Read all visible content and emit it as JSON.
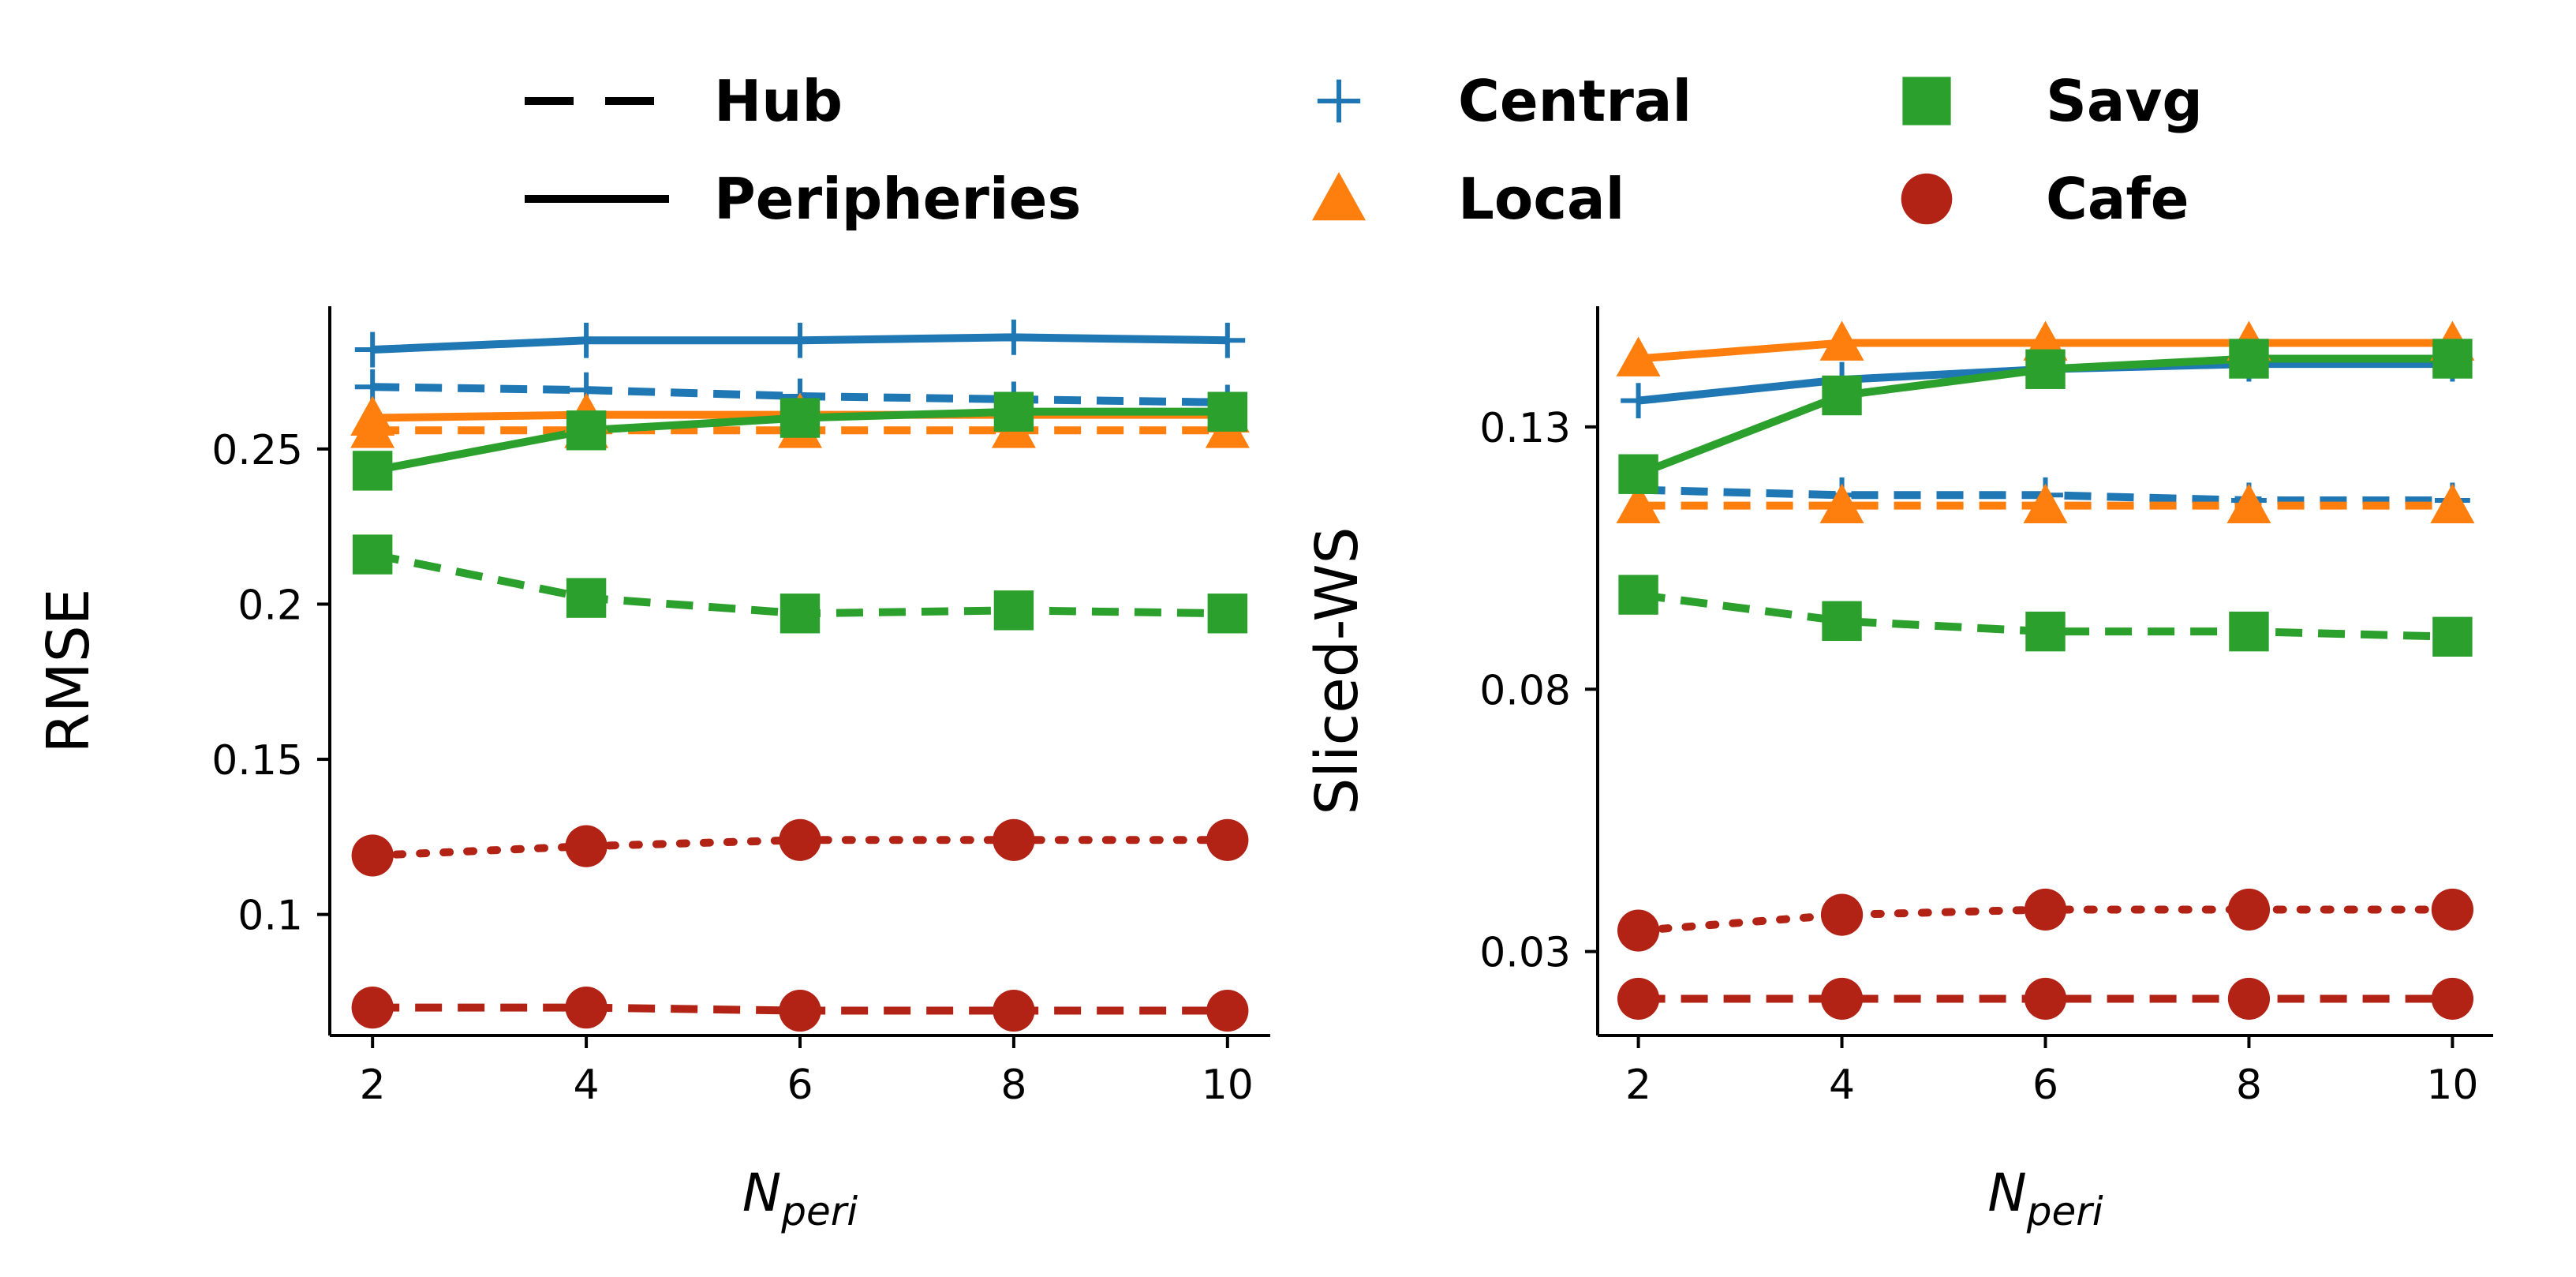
{
  "colors": {
    "Central": "#1f77b4",
    "Local": "#ff7f0e",
    "Savg": "#2ca02c",
    "Cafe": "#b22316",
    "axis": "#000000"
  },
  "legend": {
    "placement": "top-center",
    "styles": [
      {
        "name": "Hub",
        "line": "dashed"
      },
      {
        "name": "Peripheries",
        "line": "solid"
      }
    ],
    "methods": [
      {
        "name": "Central",
        "marker": "plus"
      },
      {
        "name": "Local",
        "marker": "triangle"
      },
      {
        "name": "Savg",
        "marker": "square"
      },
      {
        "name": "Cafe",
        "marker": "circle"
      }
    ]
  },
  "chart_data": [
    {
      "type": "line",
      "title": "",
      "xlabel_main": "N",
      "xlabel_sub": "peri",
      "ylabel": "RMSE",
      "x": [
        2,
        4,
        6,
        8,
        10
      ],
      "xlim": [
        1.6,
        10.4
      ],
      "ylim": [
        0.061,
        0.296
      ],
      "yticks": [
        0.1,
        0.15,
        0.2,
        0.25
      ],
      "ytick_labels": [
        "0.1",
        "0.15",
        "0.2",
        "0.25"
      ],
      "grid": false,
      "series": [
        {
          "method": "Central",
          "line": "dashed",
          "values": [
            0.27,
            0.269,
            0.267,
            0.266,
            0.265
          ]
        },
        {
          "method": "Central",
          "line": "solid",
          "values": [
            0.282,
            0.285,
            0.285,
            0.286,
            0.285
          ]
        },
        {
          "method": "Local",
          "line": "dashed",
          "values": [
            0.256,
            0.256,
            0.256,
            0.256,
            0.256
          ]
        },
        {
          "method": "Local",
          "line": "solid",
          "values": [
            0.26,
            0.261,
            0.261,
            0.261,
            0.261
          ]
        },
        {
          "method": "Savg",
          "line": "dashed",
          "values": [
            0.216,
            0.202,
            0.197,
            0.198,
            0.197
          ]
        },
        {
          "method": "Savg",
          "line": "solid",
          "values": [
            0.243,
            0.256,
            0.26,
            0.262,
            0.262
          ]
        },
        {
          "method": "Cafe",
          "line": "dashed",
          "values": [
            0.07,
            0.07,
            0.069,
            0.069,
            0.069
          ]
        },
        {
          "method": "Cafe",
          "line": "dotted",
          "values": [
            0.119,
            0.122,
            0.124,
            0.124,
            0.124
          ]
        }
      ]
    },
    {
      "type": "line",
      "title": "",
      "xlabel_main": "N",
      "xlabel_sub": "peri",
      "ylabel": "Sliced-WS",
      "x": [
        2,
        4,
        6,
        8,
        10
      ],
      "xlim": [
        1.6,
        10.4
      ],
      "ylim": [
        0.014,
        0.153
      ],
      "yticks": [
        0.03,
        0.08,
        0.13
      ],
      "ytick_labels": [
        "0.03",
        "0.08",
        "0.13"
      ],
      "grid": false,
      "series": [
        {
          "method": "Central",
          "line": "dashed",
          "values": [
            0.118,
            0.117,
            0.117,
            0.116,
            0.116
          ]
        },
        {
          "method": "Central",
          "line": "solid",
          "values": [
            0.135,
            0.139,
            0.141,
            0.142,
            0.142
          ]
        },
        {
          "method": "Local",
          "line": "dashed",
          "values": [
            0.115,
            0.115,
            0.115,
            0.115,
            0.115
          ]
        },
        {
          "method": "Local",
          "line": "solid",
          "values": [
            0.143,
            0.146,
            0.146,
            0.146,
            0.146
          ]
        },
        {
          "method": "Savg",
          "line": "dashed",
          "values": [
            0.098,
            0.093,
            0.091,
            0.091,
            0.09
          ]
        },
        {
          "method": "Savg",
          "line": "solid",
          "values": [
            0.121,
            0.136,
            0.141,
            0.143,
            0.143
          ]
        },
        {
          "method": "Cafe",
          "line": "dashed",
          "values": [
            0.021,
            0.021,
            0.021,
            0.021,
            0.021
          ]
        },
        {
          "method": "Cafe",
          "line": "dotted",
          "values": [
            0.034,
            0.037,
            0.038,
            0.038,
            0.038
          ]
        }
      ]
    }
  ]
}
